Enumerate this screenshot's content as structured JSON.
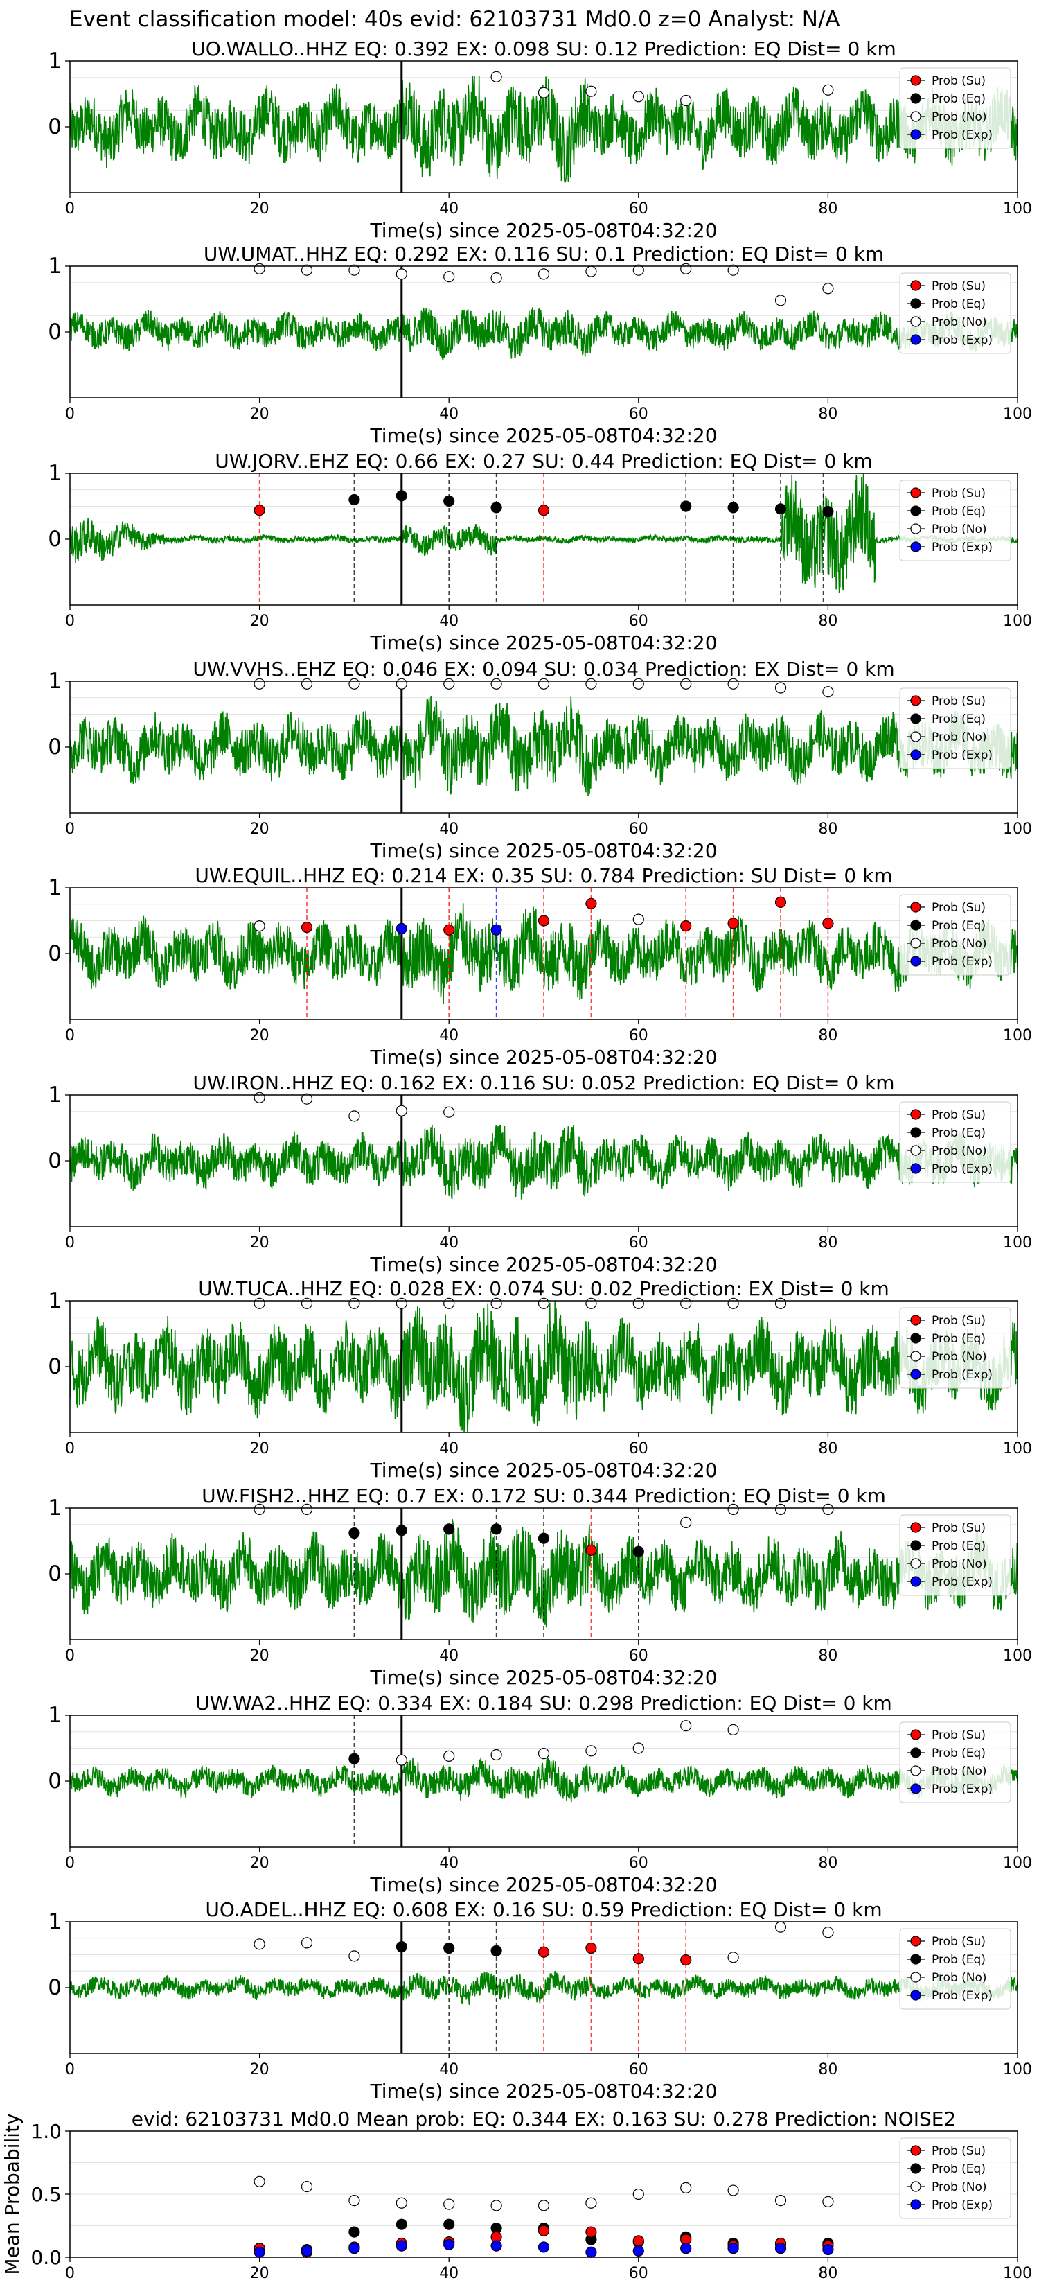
{
  "figure_title": "Event classification model: 40s evid: 62103731 Md0.0 z=0 Analyst: N/A",
  "legend_labels": [
    "Prob (Su)",
    "Prob (Eq)",
    "Prob (No)",
    "Prob (Exp)"
  ],
  "colors": {
    "su": "#ff0000",
    "eq": "#000000",
    "no": "#ffffff",
    "exp": "#0000ff",
    "wave": "#008000",
    "arrival": "#000000"
  },
  "chart_data": [
    {
      "type": "line",
      "title": "UO.WALLO..HHZ   EQ: 0.392  EX: 0.098  SU: 0.12   Prediction: EQ    Dist= 0 km",
      "xlabel": "Time(s) since 2025-05-08T04:32:20",
      "xlim": [
        0,
        100
      ],
      "ylim": [
        -1,
        1
      ],
      "xticks": [
        "0",
        "20",
        "40",
        "60",
        "80",
        "100"
      ],
      "yticks": [
        "0",
        "1"
      ],
      "arrival": 35,
      "noise": 0.5,
      "points": [
        {
          "x": 45,
          "y": 0.76,
          "c": "no"
        },
        {
          "x": 50,
          "y": 0.52,
          "c": "no"
        },
        {
          "x": 55,
          "y": 0.54,
          "c": "no"
        },
        {
          "x": 60,
          "y": 0.46,
          "c": "no"
        },
        {
          "x": 65,
          "y": 0.4,
          "c": "no"
        },
        {
          "x": 80,
          "y": 0.56,
          "c": "no"
        }
      ],
      "vlines": []
    },
    {
      "type": "line",
      "title": "UW.UMAT..HHZ   EQ: 0.292  EX: 0.116  SU: 0.1   Prediction: EQ    Dist= 0 km",
      "xlabel": "Time(s) since 2025-05-08T04:32:20",
      "xlim": [
        0,
        100
      ],
      "ylim": [
        -1,
        1
      ],
      "xticks": [
        "0",
        "20",
        "40",
        "60",
        "80",
        "100"
      ],
      "yticks": [
        "0",
        "1"
      ],
      "arrival": 35,
      "noise": 0.25,
      "points": [
        {
          "x": 20,
          "y": 0.96,
          "c": "no"
        },
        {
          "x": 25,
          "y": 0.94,
          "c": "no"
        },
        {
          "x": 30,
          "y": 0.94,
          "c": "no"
        },
        {
          "x": 35,
          "y": 0.88,
          "c": "no"
        },
        {
          "x": 40,
          "y": 0.84,
          "c": "no"
        },
        {
          "x": 45,
          "y": 0.82,
          "c": "no"
        },
        {
          "x": 50,
          "y": 0.88,
          "c": "no"
        },
        {
          "x": 55,
          "y": 0.92,
          "c": "no"
        },
        {
          "x": 60,
          "y": 0.94,
          "c": "no"
        },
        {
          "x": 65,
          "y": 0.96,
          "c": "no"
        },
        {
          "x": 70,
          "y": 0.94,
          "c": "no"
        },
        {
          "x": 75,
          "y": 0.48,
          "c": "no"
        },
        {
          "x": 80,
          "y": 0.66,
          "c": "no"
        }
      ],
      "vlines": []
    },
    {
      "type": "line",
      "title": "UW.JORV..EHZ   EQ: 0.66  EX: 0.27  SU: 0.44   Prediction: EQ    Dist= 0 km",
      "xlabel": "Time(s) since 2025-05-08T04:32:20",
      "xlim": [
        0,
        100
      ],
      "ylim": [
        -1,
        1
      ],
      "xticks": [
        "0",
        "20",
        "40",
        "60",
        "80",
        "100"
      ],
      "yticks": [
        "0",
        "1"
      ],
      "arrival": 35,
      "noise": 0.12,
      "points": [
        {
          "x": 20,
          "y": 0.44,
          "c": "su"
        },
        {
          "x": 30,
          "y": 0.6,
          "c": "eq"
        },
        {
          "x": 35,
          "y": 0.66,
          "c": "eq"
        },
        {
          "x": 40,
          "y": 0.58,
          "c": "eq"
        },
        {
          "x": 45,
          "y": 0.48,
          "c": "eq"
        },
        {
          "x": 50,
          "y": 0.44,
          "c": "su"
        },
        {
          "x": 65,
          "y": 0.5,
          "c": "eq"
        },
        {
          "x": 70,
          "y": 0.48,
          "c": "eq"
        },
        {
          "x": 75,
          "y": 0.46,
          "c": "eq"
        },
        {
          "x": 80,
          "y": 0.42,
          "c": "eq"
        }
      ],
      "vlines": [
        {
          "x": 20,
          "c": "su"
        },
        {
          "x": 30,
          "c": "eq"
        },
        {
          "x": 40,
          "c": "eq"
        },
        {
          "x": 45,
          "c": "eq"
        },
        {
          "x": 50,
          "c": "su"
        },
        {
          "x": 65,
          "c": "eq"
        },
        {
          "x": 70,
          "c": "eq"
        },
        {
          "x": 75,
          "c": "eq"
        },
        {
          "x": 79.5,
          "c": "eq"
        }
      ]
    },
    {
      "type": "line",
      "title": "UW.VVHS..EHZ   EQ: 0.046  EX: 0.094  SU: 0.034   Prediction: EX    Dist= 0 km",
      "xlabel": "Time(s) since 2025-05-08T04:32:20",
      "xlim": [
        0,
        100
      ],
      "ylim": [
        -1,
        1
      ],
      "xticks": [
        "0",
        "20",
        "40",
        "60",
        "80",
        "100"
      ],
      "yticks": [
        "0",
        "1"
      ],
      "arrival": 35,
      "noise": 0.45,
      "points": [
        {
          "x": 20,
          "y": 0.96,
          "c": "no"
        },
        {
          "x": 25,
          "y": 0.96,
          "c": "no"
        },
        {
          "x": 30,
          "y": 0.96,
          "c": "no"
        },
        {
          "x": 35,
          "y": 0.96,
          "c": "no"
        },
        {
          "x": 40,
          "y": 0.96,
          "c": "no"
        },
        {
          "x": 45,
          "y": 0.96,
          "c": "no"
        },
        {
          "x": 50,
          "y": 0.96,
          "c": "no"
        },
        {
          "x": 55,
          "y": 0.96,
          "c": "no"
        },
        {
          "x": 60,
          "y": 0.96,
          "c": "no"
        },
        {
          "x": 65,
          "y": 0.96,
          "c": "no"
        },
        {
          "x": 70,
          "y": 0.96,
          "c": "no"
        },
        {
          "x": 75,
          "y": 0.9,
          "c": "no"
        },
        {
          "x": 80,
          "y": 0.84,
          "c": "no"
        }
      ],
      "vlines": []
    },
    {
      "type": "line",
      "title": "UW.EQUIL..HHZ   EQ: 0.214  EX: 0.35  SU: 0.784   Prediction: SU    Dist= 0 km",
      "xlabel": "Time(s) since 2025-05-08T04:32:20",
      "xlim": [
        0,
        100
      ],
      "ylim": [
        -1,
        1
      ],
      "xticks": [
        "0",
        "20",
        "40",
        "60",
        "80",
        "100"
      ],
      "yticks": [
        "0",
        "1"
      ],
      "arrival": 35,
      "noise": 0.45,
      "points": [
        {
          "x": 20,
          "y": 0.42,
          "c": "no"
        },
        {
          "x": 25,
          "y": 0.4,
          "c": "su"
        },
        {
          "x": 35,
          "y": 0.38,
          "c": "exp"
        },
        {
          "x": 40,
          "y": 0.36,
          "c": "su"
        },
        {
          "x": 45,
          "y": 0.36,
          "c": "exp"
        },
        {
          "x": 50,
          "y": 0.5,
          "c": "su"
        },
        {
          "x": 55,
          "y": 0.76,
          "c": "su"
        },
        {
          "x": 60,
          "y": 0.52,
          "c": "no"
        },
        {
          "x": 65,
          "y": 0.42,
          "c": "su"
        },
        {
          "x": 70,
          "y": 0.46,
          "c": "su"
        },
        {
          "x": 75,
          "y": 0.78,
          "c": "su"
        },
        {
          "x": 80,
          "y": 0.46,
          "c": "su"
        }
      ],
      "vlines": [
        {
          "x": 25,
          "c": "su"
        },
        {
          "x": 40,
          "c": "su"
        },
        {
          "x": 45,
          "c": "exp"
        },
        {
          "x": 50,
          "c": "su"
        },
        {
          "x": 55,
          "c": "su"
        },
        {
          "x": 65,
          "c": "su"
        },
        {
          "x": 70,
          "c": "su"
        },
        {
          "x": 75,
          "c": "su"
        },
        {
          "x": 80,
          "c": "su"
        }
      ]
    },
    {
      "type": "line",
      "title": "UW.IRON..HHZ   EQ: 0.162  EX: 0.116  SU: 0.052   Prediction: EQ    Dist= 0 km",
      "xlabel": "Time(s) since 2025-05-08T04:32:20",
      "xlim": [
        0,
        100
      ],
      "ylim": [
        -1,
        1
      ],
      "xticks": [
        "0",
        "20",
        "40",
        "60",
        "80",
        "100"
      ],
      "yticks": [
        "0",
        "1"
      ],
      "arrival": 35,
      "noise": 0.35,
      "points": [
        {
          "x": 20,
          "y": 0.96,
          "c": "no"
        },
        {
          "x": 25,
          "y": 0.94,
          "c": "no"
        },
        {
          "x": 30,
          "y": 0.68,
          "c": "no"
        },
        {
          "x": 35,
          "y": 0.76,
          "c": "no"
        },
        {
          "x": 40,
          "y": 0.74,
          "c": "no"
        }
      ],
      "vlines": []
    },
    {
      "type": "line",
      "title": "UW.TUCA..HHZ   EQ: 0.028  EX: 0.074  SU: 0.02   Prediction: EX    Dist= 0 km",
      "xlabel": "Time(s) since 2025-05-08T04:32:20",
      "xlim": [
        0,
        100
      ],
      "ylim": [
        -1,
        1
      ],
      "xticks": [
        "0",
        "20",
        "40",
        "60",
        "80",
        "100"
      ],
      "yticks": [
        "0",
        "1"
      ],
      "arrival": 35,
      "noise": 0.6,
      "points": [
        {
          "x": 20,
          "y": 0.96,
          "c": "no"
        },
        {
          "x": 25,
          "y": 0.96,
          "c": "no"
        },
        {
          "x": 30,
          "y": 0.96,
          "c": "no"
        },
        {
          "x": 35,
          "y": 0.96,
          "c": "no"
        },
        {
          "x": 40,
          "y": 0.96,
          "c": "no"
        },
        {
          "x": 45,
          "y": 0.96,
          "c": "no"
        },
        {
          "x": 50,
          "y": 0.96,
          "c": "no"
        },
        {
          "x": 55,
          "y": 0.96,
          "c": "no"
        },
        {
          "x": 60,
          "y": 0.96,
          "c": "no"
        },
        {
          "x": 65,
          "y": 0.96,
          "c": "no"
        },
        {
          "x": 70,
          "y": 0.96,
          "c": "no"
        },
        {
          "x": 75,
          "y": 0.96,
          "c": "no"
        }
      ],
      "vlines": []
    },
    {
      "type": "line",
      "title": "UW.FISH2..HHZ   EQ: 0.7  EX: 0.172  SU: 0.344   Prediction: EQ    Dist= 0 km",
      "xlabel": "Time(s) since 2025-05-08T04:32:20",
      "xlim": [
        0,
        100
      ],
      "ylim": [
        -1,
        1
      ],
      "xticks": [
        "0",
        "20",
        "40",
        "60",
        "80",
        "100"
      ],
      "yticks": [
        "0",
        "1"
      ],
      "arrival": 35,
      "noise": 0.5,
      "points": [
        {
          "x": 20,
          "y": 0.98,
          "c": "no"
        },
        {
          "x": 25,
          "y": 0.98,
          "c": "no"
        },
        {
          "x": 30,
          "y": 0.62,
          "c": "eq"
        },
        {
          "x": 35,
          "y": 0.66,
          "c": "eq"
        },
        {
          "x": 40,
          "y": 0.68,
          "c": "eq"
        },
        {
          "x": 45,
          "y": 0.68,
          "c": "eq"
        },
        {
          "x": 50,
          "y": 0.54,
          "c": "eq"
        },
        {
          "x": 55,
          "y": 0.36,
          "c": "su"
        },
        {
          "x": 60,
          "y": 0.34,
          "c": "eq"
        },
        {
          "x": 65,
          "y": 0.78,
          "c": "no"
        },
        {
          "x": 70,
          "y": 0.98,
          "c": "no"
        },
        {
          "x": 75,
          "y": 0.98,
          "c": "no"
        },
        {
          "x": 80,
          "y": 0.98,
          "c": "no"
        }
      ],
      "vlines": [
        {
          "x": 30,
          "c": "eq"
        },
        {
          "x": 45,
          "c": "eq"
        },
        {
          "x": 50,
          "c": "eq"
        },
        {
          "x": 55,
          "c": "su"
        },
        {
          "x": 60,
          "c": "eq"
        }
      ]
    },
    {
      "type": "line",
      "title": "UW.WA2..HHZ   EQ: 0.334  EX: 0.184  SU: 0.298   Prediction: EQ    Dist= 0 km",
      "xlabel": "Time(s) since 2025-05-08T04:32:20",
      "xlim": [
        0,
        100
      ],
      "ylim": [
        -1,
        1
      ],
      "xticks": [
        "0",
        "20",
        "40",
        "60",
        "80",
        "100"
      ],
      "yticks": [
        "0",
        "1"
      ],
      "arrival": 35,
      "noise": 0.2,
      "points": [
        {
          "x": 30,
          "y": 0.34,
          "c": "eq"
        },
        {
          "x": 35,
          "y": 0.32,
          "c": "no"
        },
        {
          "x": 40,
          "y": 0.38,
          "c": "no"
        },
        {
          "x": 45,
          "y": 0.4,
          "c": "no"
        },
        {
          "x": 50,
          "y": 0.42,
          "c": "no"
        },
        {
          "x": 55,
          "y": 0.46,
          "c": "no"
        },
        {
          "x": 60,
          "y": 0.5,
          "c": "no"
        },
        {
          "x": 65,
          "y": 0.84,
          "c": "no"
        },
        {
          "x": 70,
          "y": 0.78,
          "c": "no"
        }
      ],
      "vlines": [
        {
          "x": 30,
          "c": "eq"
        }
      ]
    },
    {
      "type": "line",
      "title": "UO.ADEL..HHZ   EQ: 0.608  EX: 0.16  SU: 0.59   Prediction: EQ    Dist= 0 km",
      "xlabel": "Time(s) since 2025-05-08T04:32:20",
      "xlim": [
        0,
        100
      ],
      "ylim": [
        -1,
        1
      ],
      "xticks": [
        "0",
        "20",
        "40",
        "60",
        "80",
        "100"
      ],
      "yticks": [
        "0",
        "1"
      ],
      "arrival": 35,
      "noise": 0.15,
      "points": [
        {
          "x": 20,
          "y": 0.66,
          "c": "no"
        },
        {
          "x": 25,
          "y": 0.68,
          "c": "no"
        },
        {
          "x": 30,
          "y": 0.48,
          "c": "no"
        },
        {
          "x": 35,
          "y": 0.62,
          "c": "eq"
        },
        {
          "x": 40,
          "y": 0.6,
          "c": "eq"
        },
        {
          "x": 45,
          "y": 0.56,
          "c": "eq"
        },
        {
          "x": 50,
          "y": 0.54,
          "c": "su"
        },
        {
          "x": 55,
          "y": 0.6,
          "c": "su"
        },
        {
          "x": 60,
          "y": 0.44,
          "c": "su"
        },
        {
          "x": 65,
          "y": 0.42,
          "c": "su"
        },
        {
          "x": 70,
          "y": 0.46,
          "c": "no"
        },
        {
          "x": 75,
          "y": 0.92,
          "c": "no"
        },
        {
          "x": 80,
          "y": 0.84,
          "c": "no"
        }
      ],
      "vlines": [
        {
          "x": 40,
          "c": "eq"
        },
        {
          "x": 45,
          "c": "eq"
        },
        {
          "x": 50,
          "c": "su"
        },
        {
          "x": 55,
          "c": "su"
        },
        {
          "x": 60,
          "c": "su"
        },
        {
          "x": 65,
          "c": "su"
        }
      ]
    },
    {
      "type": "scatter",
      "title": "evid: 62103731  Md0.0   Mean prob:   EQ: 0.344  EX: 0.163  SU: 0.278   Prediction: NOISE2",
      "xlabel": "",
      "ylabel": "Mean Probability",
      "xlim": [
        0,
        100
      ],
      "ylim": [
        0,
        1
      ],
      "xticks": [
        "0",
        "20",
        "40",
        "60",
        "80",
        "100"
      ],
      "yticks": [
        "0.0",
        "0.5",
        "1.0"
      ],
      "x": [
        20,
        25,
        30,
        35,
        40,
        45,
        50,
        55,
        60,
        65,
        70,
        75,
        80
      ],
      "series": [
        {
          "name": "Prob (No)",
          "c": "no",
          "values": [
            0.6,
            0.56,
            0.45,
            0.43,
            0.42,
            0.41,
            0.41,
            0.43,
            0.5,
            0.55,
            0.53,
            0.45,
            0.44
          ]
        },
        {
          "name": "Prob (Eq)",
          "c": "eq",
          "values": [
            0.07,
            0.06,
            0.2,
            0.26,
            0.26,
            0.23,
            0.23,
            0.14,
            0.12,
            0.16,
            0.11,
            0.1,
            0.11
          ]
        },
        {
          "name": "Prob (Su)",
          "c": "su",
          "values": [
            0.07,
            0.04,
            0.08,
            0.11,
            0.12,
            0.16,
            0.21,
            0.2,
            0.13,
            0.14,
            0.09,
            0.11,
            0.09
          ]
        },
        {
          "name": "Prob (Exp)",
          "c": "exp",
          "values": [
            0.04,
            0.05,
            0.07,
            0.09,
            0.1,
            0.09,
            0.08,
            0.04,
            0.05,
            0.07,
            0.07,
            0.07,
            0.06
          ]
        }
      ]
    }
  ]
}
